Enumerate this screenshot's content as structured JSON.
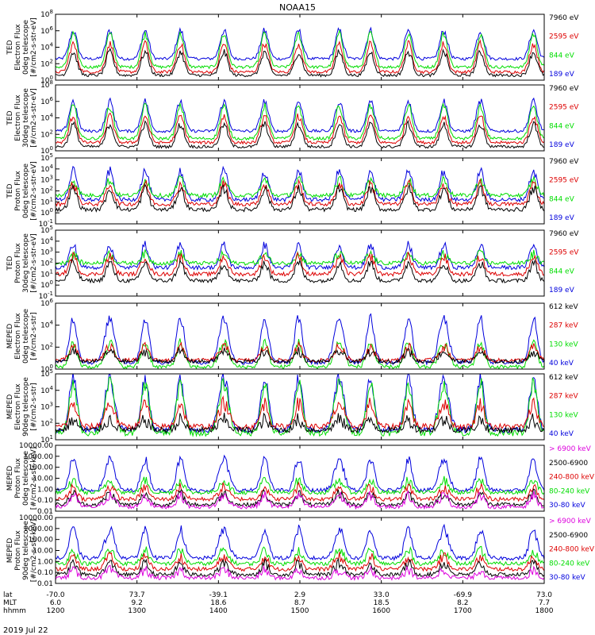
{
  "chart_data": {
    "type": "line",
    "title": "NOAA15",
    "date_label": "2019 Jul 22",
    "x_axis": {
      "range": [
        "1200",
        "1800"
      ],
      "rows": [
        {
          "name": "lat",
          "label": "lat",
          "values": [
            "-70.0",
            "73.7",
            "-39.1",
            "2.9",
            "33.0",
            "-69.9",
            "73.0"
          ]
        },
        {
          "name": "mlt",
          "label": "MLT",
          "values": [
            "6.0",
            "9.2",
            "18.6",
            "8.7",
            "18.5",
            "8.2",
            "7.7"
          ]
        },
        {
          "name": "hhmm",
          "label": "hhmm",
          "values": [
            "1200",
            "1300",
            "1400",
            "1500",
            "1600",
            "1700",
            "1800"
          ]
        }
      ]
    },
    "panels": [
      {
        "ylabel": [
          "TED",
          "Electron Flux",
          "0deg telescope",
          "[#/cm2-s-str-eV]"
        ],
        "yticks": [
          "10^0",
          "10^2",
          "10^4",
          "10^6",
          "10^8"
        ],
        "ylog": [
          0,
          8
        ],
        "series": [
          {
            "name": "7960 eV",
            "color": "#000000",
            "base": 0.6,
            "peak": 3.4
          },
          {
            "name": "2595 eV",
            "color": "#dd0000",
            "base": 1.0,
            "peak": 4.4
          },
          {
            "name": "844 eV",
            "color": "#00dd00",
            "base": 1.6,
            "peak": 5.6
          },
          {
            "name": "189 eV",
            "color": "#0000dd",
            "base": 2.6,
            "peak": 6.0
          }
        ]
      },
      {
        "ylabel": [
          "TED",
          "Electron Flux",
          "30deg telescope",
          "[#/cm2-s-str-eV]"
        ],
        "yticks": [
          "10^0",
          "10^2",
          "10^4",
          "10^6",
          "10^8"
        ],
        "ylog": [
          0,
          8
        ],
        "series": [
          {
            "name": "7960 eV",
            "color": "#000000",
            "base": 0.5,
            "peak": 3.2
          },
          {
            "name": "2595 eV",
            "color": "#dd0000",
            "base": 1.0,
            "peak": 4.2
          },
          {
            "name": "844 eV",
            "color": "#00dd00",
            "base": 1.5,
            "peak": 5.4
          },
          {
            "name": "189 eV",
            "color": "#0000dd",
            "base": 2.4,
            "peak": 6.0
          }
        ]
      },
      {
        "ylabel": [
          "TED",
          "Proton Flux",
          "0deg telescope",
          "[#/cm2-s-str-eV]"
        ],
        "yticks": [
          "10^-1",
          "10^0",
          "10^1",
          "10^2",
          "10^3",
          "10^4",
          "10^5"
        ],
        "ylog": [
          -1,
          5
        ],
        "series": [
          {
            "name": "7960 eV",
            "color": "#000000",
            "base": 0.3,
            "peak": 2.2
          },
          {
            "name": "2595 eV",
            "color": "#dd0000",
            "base": 0.8,
            "peak": 2.6
          },
          {
            "name": "844 eV",
            "color": "#00dd00",
            "base": 1.6,
            "peak": 3.0
          },
          {
            "name": "189 eV",
            "color": "#0000dd",
            "base": 1.2,
            "peak": 3.8
          }
        ]
      },
      {
        "ylabel": [
          "TED",
          "Proton Flux",
          "30deg telescope",
          "[#/cm2-s-str-eV]"
        ],
        "yticks": [
          "10^-1",
          "10^0",
          "10^1",
          "10^2",
          "10^3",
          "10^4",
          "10^5"
        ],
        "ylog": [
          -1,
          5
        ],
        "series": [
          {
            "name": "7960 eV",
            "color": "#000000",
            "base": 0.4,
            "peak": 2.0
          },
          {
            "name": "2595 eV",
            "color": "#dd0000",
            "base": 1.0,
            "peak": 2.6
          },
          {
            "name": "844 eV",
            "color": "#00dd00",
            "base": 2.0,
            "peak": 2.8
          },
          {
            "name": "189 eV",
            "color": "#0000dd",
            "base": 1.6,
            "peak": 3.6
          }
        ]
      },
      {
        "ylabel": [
          "MEPED",
          "Electron Flux",
          "0deg telescope",
          "[#/cm2-s-str]"
        ],
        "yticks": [
          "10^0",
          "10^2",
          "10^4",
          "10^6"
        ],
        "ylog": [
          0,
          6
        ],
        "series": [
          {
            "name": "612 keV",
            "color": "#000000",
            "base": 0.7,
            "peak": 1.6
          },
          {
            "name": "287 keV",
            "color": "#dd0000",
            "base": 0.8,
            "peak": 2.0
          },
          {
            "name": "130 keV",
            "color": "#00dd00",
            "base": 0.2,
            "peak": 2.4
          },
          {
            "name": "40 keV",
            "color": "#0000dd",
            "base": 0.6,
            "peak": 4.6
          }
        ]
      },
      {
        "ylabel": [
          "MEPED",
          "Electron Flux",
          "90deg telescope",
          "[#/cm2-s-str]"
        ],
        "yticks": [
          "10^1",
          "10^2",
          "10^3",
          "10^4",
          "10^5"
        ],
        "ylog": [
          1,
          5
        ],
        "series": [
          {
            "name": "612 keV",
            "color": "#000000",
            "base": 1.6,
            "peak": 2.2
          },
          {
            "name": "287 keV",
            "color": "#dd0000",
            "base": 1.8,
            "peak": 3.2
          },
          {
            "name": "130 keV",
            "color": "#00dd00",
            "base": 1.4,
            "peak": 4.4
          },
          {
            "name": "40 keV",
            "color": "#0000dd",
            "base": 1.6,
            "peak": 4.7
          }
        ]
      },
      {
        "ylabel": [
          "MEPED",
          "Proton Flux",
          "0deg telescope",
          "[#/cm2-s-str-keV]"
        ],
        "yticks": [
          "0.01",
          "0.10",
          "1.00",
          "10.00",
          "100.00",
          "1000.00",
          "10000.00"
        ],
        "ylog": [
          -2,
          4
        ],
        "series": [
          {
            "name": "> 6900 keV",
            "color": "#dd00dd",
            "base": -1.6,
            "peak": -0.6
          },
          {
            "name": "2500-6900",
            "color": "#000000",
            "base": -1.4,
            "peak": -0.4
          },
          {
            "name": "240-800 keV",
            "color": "#dd0000",
            "base": -0.9,
            "peak": 0.2
          },
          {
            "name": "80-240 keV",
            "color": "#00dd00",
            "base": -0.3,
            "peak": 0.8
          },
          {
            "name": "30-80 keV",
            "color": "#0000dd",
            "base": -0.1,
            "peak": 2.7
          }
        ]
      },
      {
        "ylabel": [
          "MEPED",
          "Proton Flux",
          "90deg telescope",
          "[#/cm2-s-str-keV]"
        ],
        "yticks": [
          "0.01",
          "0.10",
          "1.00",
          "10.00",
          "100.00",
          "1000.00",
          "10000.00"
        ],
        "ylog": [
          -2,
          4
        ],
        "series": [
          {
            "name": "> 6900 keV",
            "color": "#dd00dd",
            "base": -1.5,
            "peak": -0.8
          },
          {
            "name": "2500-6900",
            "color": "#000000",
            "base": -1.2,
            "peak": -0.2
          },
          {
            "name": "240-800 keV",
            "color": "#dd0000",
            "base": -0.7,
            "peak": 0.4
          },
          {
            "name": "80-240 keV",
            "color": "#00dd00",
            "base": -0.2,
            "peak": 1.0
          },
          {
            "name": "30-80 keV",
            "color": "#0000dd",
            "base": 0.3,
            "peak": 2.9
          }
        ]
      }
    ],
    "passes_hhmm": [
      1213,
      1240,
      1306,
      1332,
      1404,
      1434,
      1459,
      1529,
      1552,
      1620,
      1646,
      1713,
      1752
    ]
  }
}
